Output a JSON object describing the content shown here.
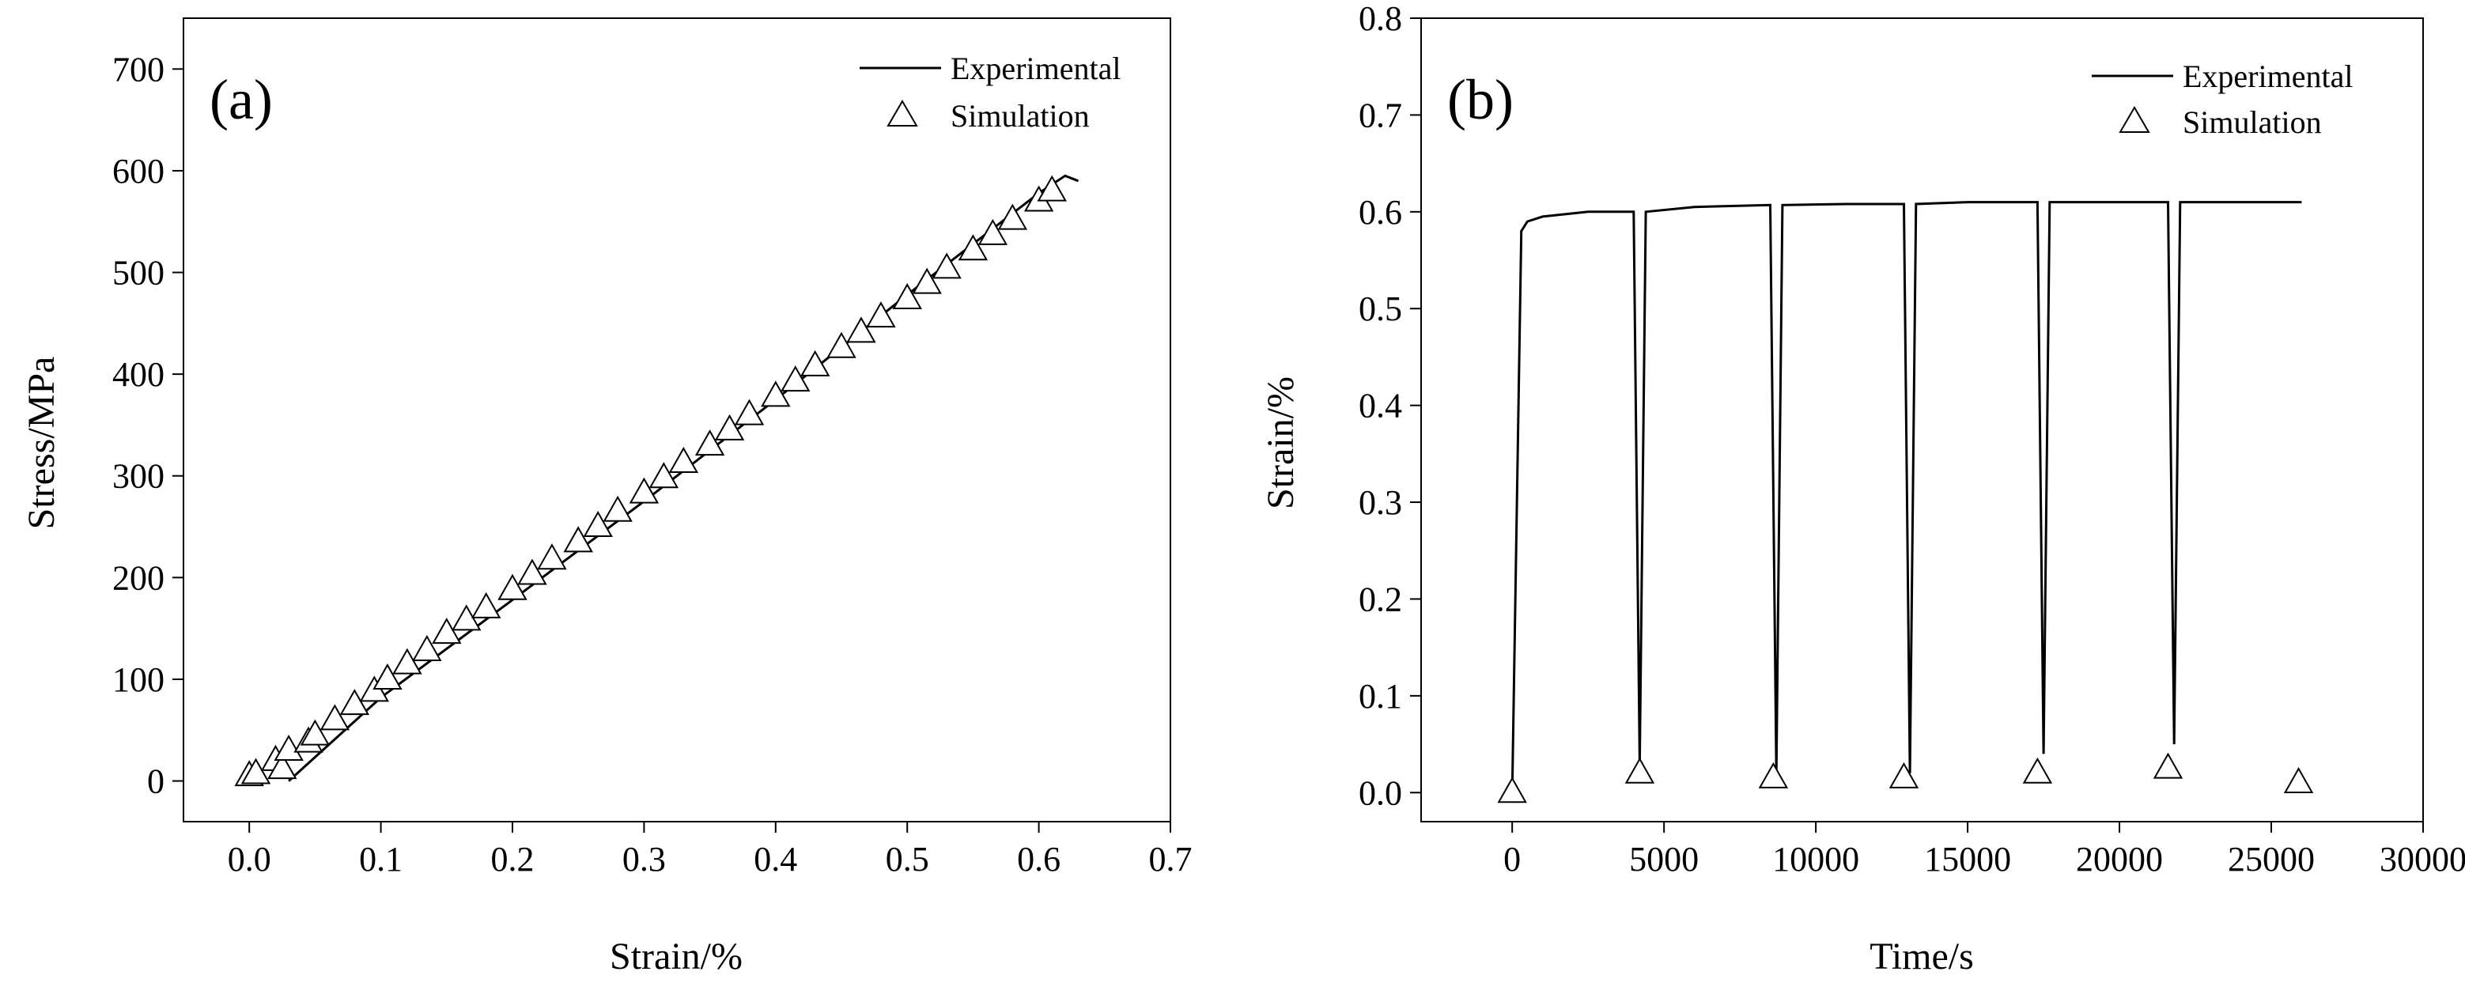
{
  "chart_data": [
    {
      "type": "scatter",
      "panel_label": "(a)",
      "xlabel": "Strain/%",
      "ylabel": "Stress/MPa",
      "xlim": [
        -0.05,
        0.7
      ],
      "ylim": [
        -40,
        750
      ],
      "xticks": [
        "0.0",
        "0.1",
        "0.2",
        "0.3",
        "0.4",
        "0.5",
        "0.6",
        "0.7"
      ],
      "yticks": [
        "0",
        "100",
        "200",
        "300",
        "400",
        "500",
        "600",
        "700"
      ],
      "legend_position": "top-right",
      "grid": false,
      "series": [
        {
          "name": "Experimental",
          "style": "line",
          "x": [
            0.03,
            0.1,
            0.2,
            0.3,
            0.4,
            0.5,
            0.6,
            0.62,
            0.63
          ],
          "y": [
            0,
            82,
            178,
            275,
            375,
            478,
            578,
            595,
            590
          ]
        },
        {
          "name": "Simulation",
          "style": "triangle-markers",
          "x": [
            0.0,
            0.005,
            0.02,
            0.025,
            0.03,
            0.045,
            0.05,
            0.065,
            0.08,
            0.095,
            0.105,
            0.12,
            0.135,
            0.15,
            0.165,
            0.18,
            0.2,
            0.215,
            0.23,
            0.25,
            0.265,
            0.28,
            0.3,
            0.315,
            0.33,
            0.35,
            0.365,
            0.38,
            0.4,
            0.415,
            0.43,
            0.45,
            0.465,
            0.48,
            0.5,
            0.515,
            0.53,
            0.55,
            0.565,
            0.58,
            0.6,
            0.61
          ],
          "y": [
            5,
            7,
            20,
            12,
            30,
            38,
            45,
            60,
            75,
            88,
            100,
            115,
            128,
            145,
            158,
            170,
            188,
            203,
            218,
            235,
            250,
            265,
            283,
            298,
            313,
            330,
            345,
            360,
            378,
            393,
            408,
            426,
            441,
            456,
            474,
            489,
            504,
            522,
            537,
            552,
            570,
            580
          ]
        }
      ]
    },
    {
      "type": "scatter",
      "panel_label": "(b)",
      "xlabel": "Time/s",
      "ylabel": "Strain/%",
      "xlim": [
        -3000,
        30000
      ],
      "ylim": [
        -0.03,
        0.8
      ],
      "xticks": [
        "0",
        "5000",
        "10000",
        "15000",
        "20000",
        "25000",
        "30000"
      ],
      "yticks": [
        "0.0",
        "0.1",
        "0.2",
        "0.3",
        "0.4",
        "0.5",
        "0.6",
        "0.7",
        "0.8"
      ],
      "legend_position": "top-right",
      "grid": false,
      "series": [
        {
          "name": "Experimental",
          "style": "line",
          "x": [
            0,
            300,
            500,
            1000,
            2500,
            4000,
            4200,
            4400,
            6000,
            8500,
            8700,
            8900,
            11000,
            12900,
            13100,
            13300,
            15000,
            17300,
            17500,
            17700,
            19000,
            21600,
            21800,
            22000,
            24000,
            26000
          ],
          "y": [
            0,
            0.58,
            0.59,
            0.595,
            0.6,
            0.6,
            0.03,
            0.6,
            0.605,
            0.607,
            0.02,
            0.607,
            0.608,
            0.608,
            0.02,
            0.608,
            0.61,
            0.61,
            0.04,
            0.61,
            0.61,
            0.61,
            0.05,
            0.61,
            0.61,
            0.61
          ]
        },
        {
          "name": "Simulation",
          "style": "triangle-markers",
          "x": [
            0,
            4200,
            8600,
            12900,
            17300,
            21600,
            25900
          ],
          "y": [
            0.0,
            0.02,
            0.015,
            0.015,
            0.02,
            0.025,
            0.01
          ]
        }
      ]
    }
  ]
}
